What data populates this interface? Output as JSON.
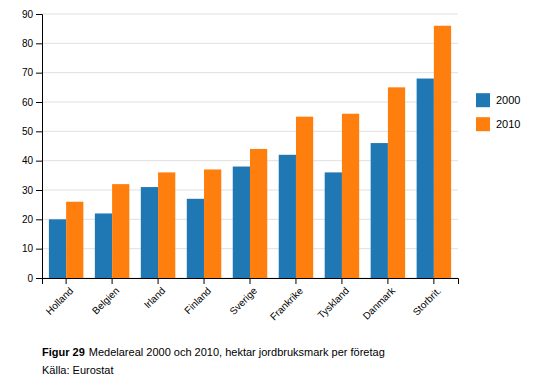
{
  "chart_data": {
    "type": "bar",
    "title": "Figur 29",
    "subtitle": "Medelareal 2000 och 2010, hektar jordbruksmark per företag",
    "annotations": [
      "Källa: Eurostat"
    ],
    "categories": [
      "Holland",
      "Belgien",
      "Irland",
      "Finland",
      "Sverige",
      "Frankrike",
      "Tyskland",
      "Danmark",
      "Storbrit."
    ],
    "series": [
      {
        "name": "2000",
        "values": [
          20,
          22,
          31,
          27,
          38,
          42,
          36,
          46,
          68
        ]
      },
      {
        "name": "2010",
        "values": [
          26,
          32,
          36,
          37,
          44,
          55,
          56,
          65,
          86
        ]
      }
    ],
    "ylim": [
      0,
      90
    ],
    "yticks": [
      0,
      10,
      20,
      30,
      40,
      50,
      60,
      70,
      80,
      90
    ],
    "grid": true,
    "legend": "right"
  }
}
